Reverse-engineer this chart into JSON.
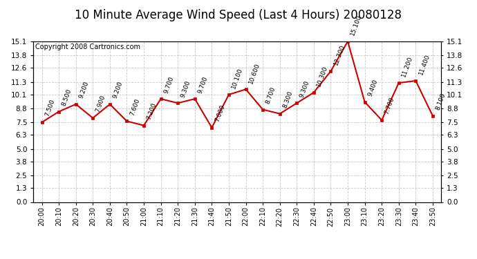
{
  "title": "10 Minute Average Wind Speed (Last 4 Hours) 20080128",
  "copyright": "Copyright 2008 Cartronics.com",
  "x_labels": [
    "20:00",
    "20:10",
    "20:20",
    "20:30",
    "20:40",
    "20:50",
    "21:00",
    "21:10",
    "21:20",
    "21:30",
    "21:40",
    "21:50",
    "22:00",
    "22:10",
    "22:20",
    "22:30",
    "22:40",
    "22:50",
    "23:00",
    "23:10",
    "23:20",
    "23:30",
    "23:40",
    "23:50"
  ],
  "y_values": [
    7.5,
    8.5,
    9.2,
    7.9,
    9.2,
    7.6,
    7.2,
    9.7,
    9.3,
    9.7,
    7.0,
    10.1,
    10.6,
    8.7,
    8.3,
    9.3,
    10.3,
    12.3,
    15.1,
    9.4,
    7.7,
    11.2,
    11.4,
    8.1
  ],
  "line_color": "#cc0000",
  "marker_color": "#cc0000",
  "bg_color": "#ffffff",
  "grid_color": "#c8c8c8",
  "ylim_min": 0.0,
  "ylim_max": 15.1,
  "yticks": [
    0.0,
    1.3,
    2.5,
    3.8,
    5.0,
    6.3,
    7.5,
    8.8,
    10.1,
    11.3,
    12.6,
    13.8,
    15.1
  ],
  "title_fontsize": 12,
  "copyright_fontsize": 7,
  "label_fontsize": 6.5
}
